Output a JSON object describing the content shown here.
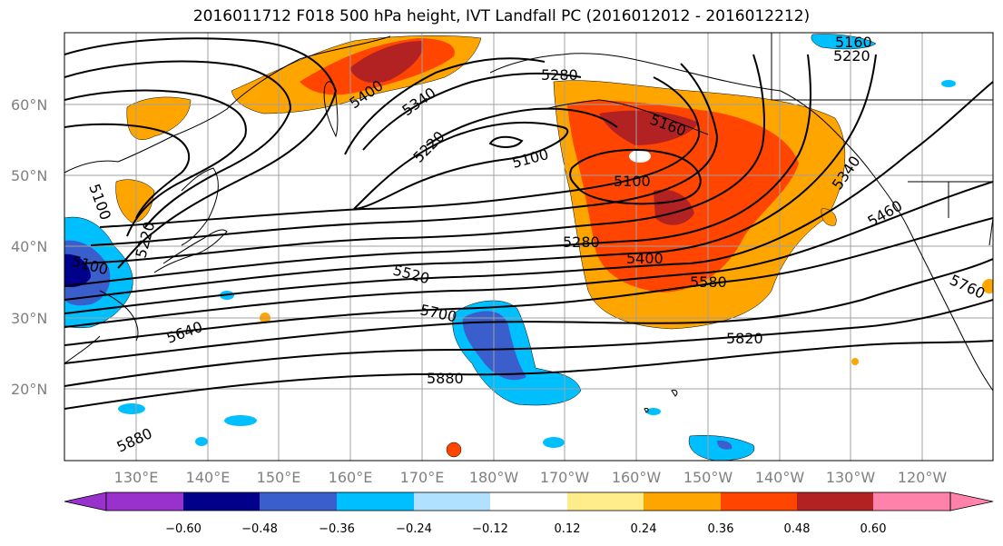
{
  "title": "2016011712 F018 500 hPa height, IVT Landfall PC (2016012012 - 2016012212)",
  "map": {
    "lat_labels": [
      "60°N",
      "50°N",
      "40°N",
      "30°N",
      "20°N"
    ],
    "lon_labels": [
      "130°E",
      "140°E",
      "150°E",
      "160°E",
      "170°E",
      "180°W",
      "170°W",
      "160°W",
      "150°W",
      "140°W",
      "130°W",
      "120°W"
    ],
    "height_contour_labels": [
      "5160",
      "5220",
      "5280",
      "5340",
      "5400",
      "5220",
      "5100",
      "5100",
      "5100",
      "5160",
      "5220",
      "5280",
      "5400",
      "5520",
      "5580",
      "5640",
      "5700",
      "5820",
      "5880",
      "5880",
      "5340",
      "5460",
      "5760",
      "5100"
    ]
  },
  "colorbar": {
    "labels": [
      "−0.60",
      "−0.48",
      "−0.36",
      "−0.24",
      "−0.12",
      "0.12",
      "0.24",
      "0.36",
      "0.48",
      "0.60"
    ],
    "colors": [
      "#9932CC",
      "#00008B",
      "#3A5FCD",
      "#00BFFF",
      "#B0E2FF",
      "#FFFFFF",
      "#FFEC8B",
      "#FFA500",
      "#FF4500",
      "#B22222",
      "#FF82AB"
    ]
  }
}
